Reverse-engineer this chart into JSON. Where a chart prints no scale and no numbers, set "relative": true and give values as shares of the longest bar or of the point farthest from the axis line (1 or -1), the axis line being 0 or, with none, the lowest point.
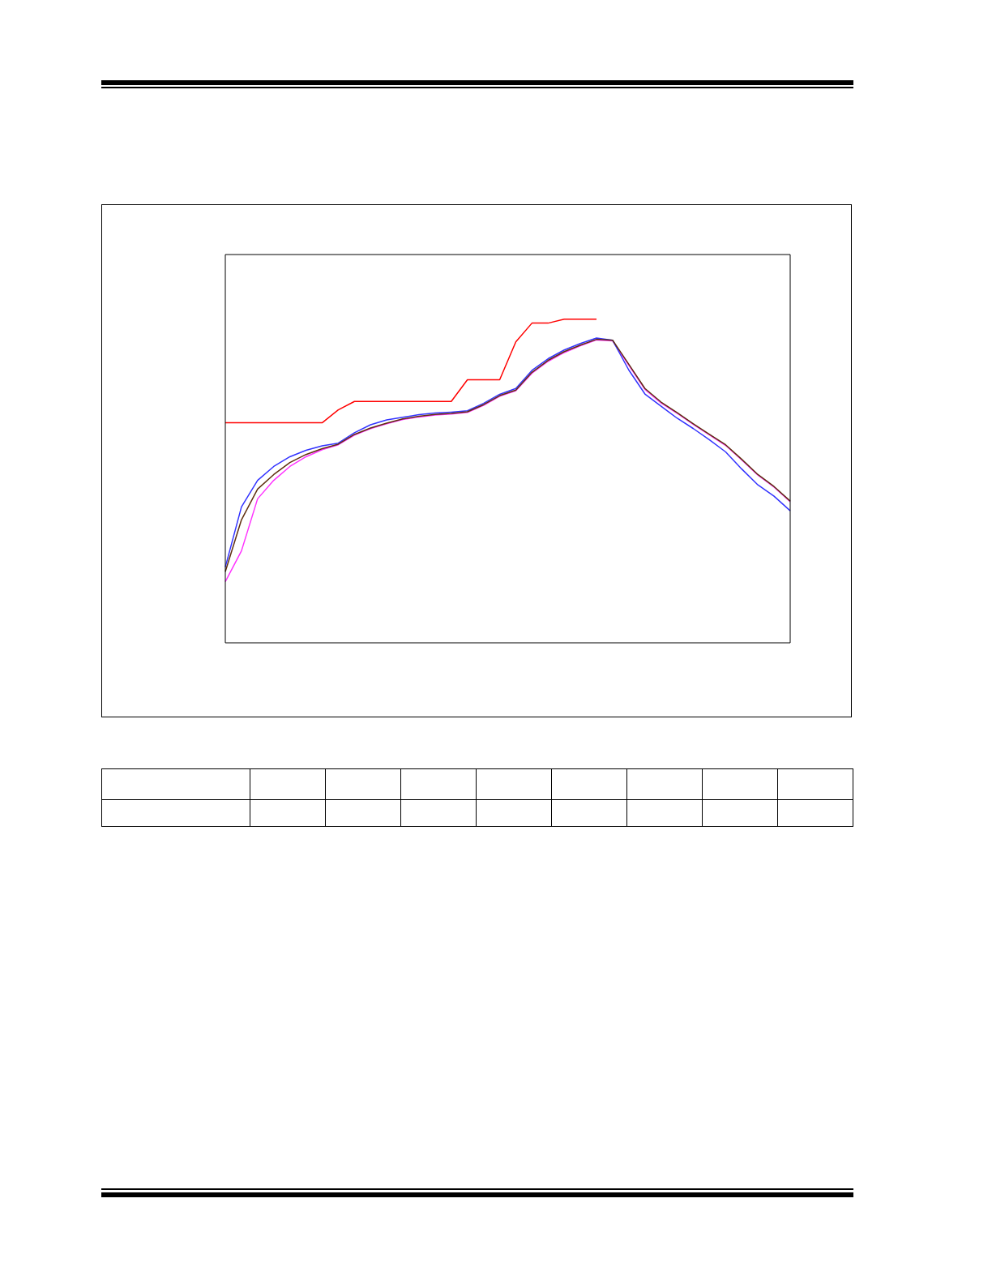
{
  "chart_data": {
    "type": "line",
    "relative": true,
    "legend": false,
    "marker": "none",
    "line_style": "solid",
    "categories": [
      null,
      null,
      null,
      null,
      null,
      null,
      null,
      null,
      null,
      null,
      null,
      null,
      null,
      null,
      null,
      null,
      null,
      null,
      null,
      null,
      null,
      null,
      null,
      null,
      null,
      null,
      null,
      null,
      null,
      null,
      null,
      null,
      null,
      null,
      null,
      null
    ],
    "series": [
      {
        "color": "#ff0000",
        "values": [
          0.68,
          0.68,
          0.68,
          0.68,
          0.68,
          0.68,
          0.68,
          0.72,
          0.746,
          0.746,
          0.746,
          0.746,
          0.746,
          0.746,
          0.746,
          0.813,
          0.813,
          0.813,
          0.93,
          0.988,
          0.988,
          1,
          1,
          1,
          null,
          null,
          null,
          null,
          null,
          null,
          null,
          null,
          null,
          null,
          null,
          null
        ]
      },
      {
        "color": "#603010",
        "values": [
          0.22,
          0.38,
          0.475,
          0.52,
          0.557,
          0.582,
          0.6,
          0.614,
          0.644,
          0.664,
          0.679,
          0.692,
          0.7,
          0.706,
          0.709,
          0.714,
          0.736,
          0.764,
          0.781,
          0.836,
          0.873,
          0.9,
          0.92,
          0.938,
          0.935,
          0.861,
          0.786,
          0.744,
          0.711,
          0.677,
          0.644,
          0.612,
          0.567,
          0.52,
          0.483,
          0.438
        ]
      },
      {
        "color": "#3333ff",
        "values": [
          0.234,
          0.42,
          0.502,
          0.545,
          0.575,
          0.595,
          0.609,
          0.617,
          0.649,
          0.674,
          0.689,
          0.697,
          0.705,
          0.71,
          0.713,
          0.717,
          0.74,
          0.768,
          0.786,
          0.842,
          0.878,
          0.905,
          0.925,
          0.942,
          0.935,
          0.843,
          0.769,
          0.731,
          0.694,
          0.662,
          0.627,
          0.59,
          0.537,
          0.488,
          0.453,
          0.408
        ]
      },
      {
        "color": "#ff33ff",
        "values": [
          0.189,
          0.284,
          0.445,
          0.502,
          0.545,
          0.575,
          0.597,
          0.612,
          0.642,
          0.662,
          0.677,
          0.69,
          0.698,
          0.704,
          0.707,
          0.712,
          0.734,
          0.762,
          0.779,
          0.833,
          0.87,
          0.897,
          0.918,
          0.936,
          0.933,
          0.858,
          0.783,
          0.741,
          0.709,
          0.675,
          0.642,
          0.61,
          0.565,
          0.518,
          0.481,
          0.436
        ]
      }
    ]
  }
}
